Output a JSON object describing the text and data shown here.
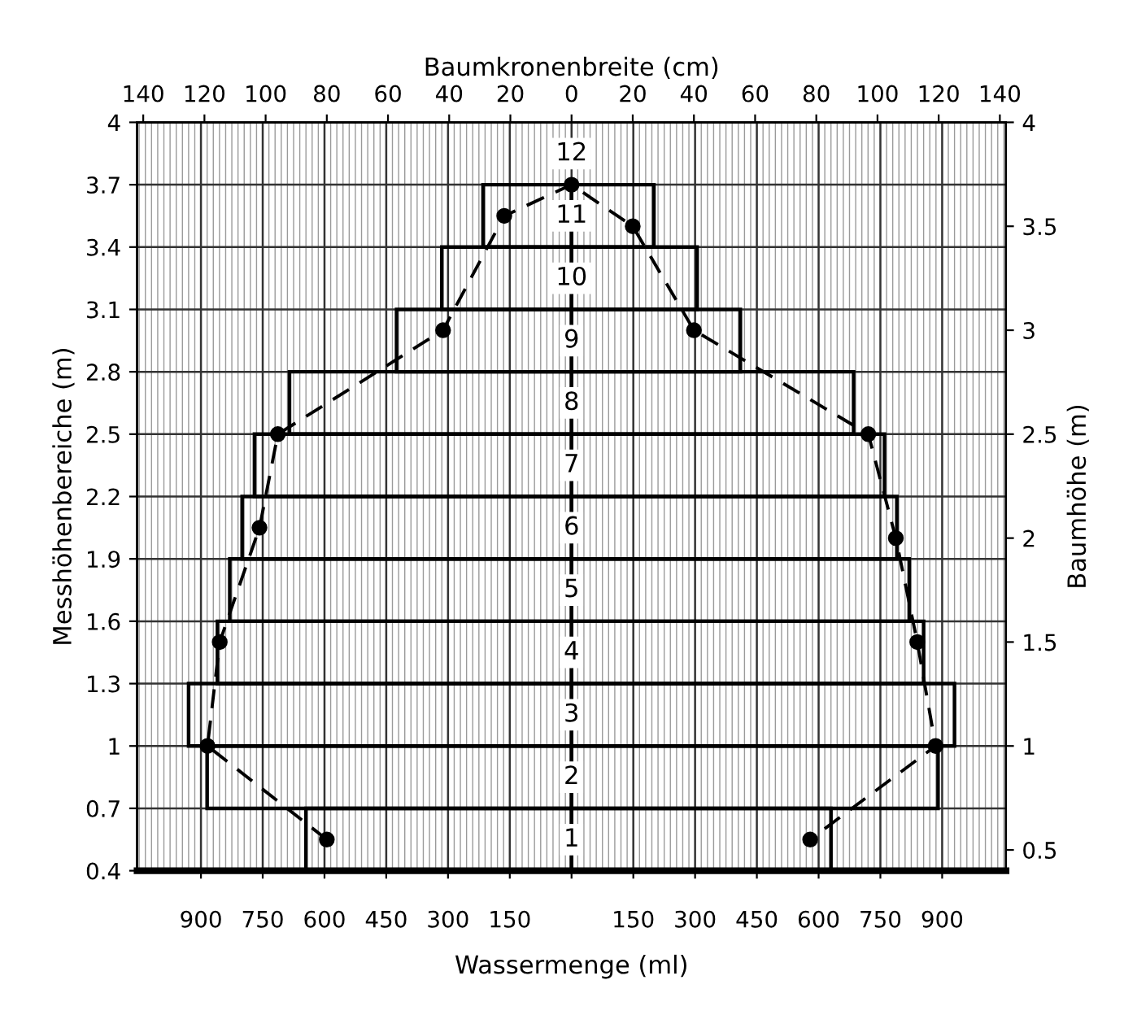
{
  "chart_data": {
    "type": "bar",
    "orientation": "horizontal",
    "xlabel": "Wassermenge (ml)",
    "x2label": "Baumkronenbreite (cm)",
    "ylabel": "Messhöhenbereiche (m)",
    "y2label": "Baumhöhe (m)",
    "xlim": [
      -1055,
      1055
    ],
    "xticks": [
      {
        "value": -900,
        "label": "900"
      },
      {
        "value": -750,
        "label": "750"
      },
      {
        "value": -600,
        "label": "600"
      },
      {
        "value": -450,
        "label": "450"
      },
      {
        "value": -300,
        "label": "300"
      },
      {
        "value": -150,
        "label": "150"
      },
      {
        "value": 0,
        "label": null
      },
      150,
      300,
      450,
      600,
      750,
      900
    ],
    "x2lim": [
      -142,
      142
    ],
    "x2ticks": [
      {
        "value": -140,
        "label": "140"
      },
      {
        "value": -120,
        "label": "120"
      },
      {
        "value": -100,
        "label": "100"
      },
      {
        "value": -80,
        "label": "80"
      },
      {
        "value": -60,
        "label": "60"
      },
      {
        "value": -40,
        "label": "40"
      },
      {
        "value": -20,
        "label": "20"
      },
      0,
      20,
      40,
      60,
      80,
      100,
      120,
      140
    ],
    "ylim": [
      0.4,
      4
    ],
    "yticks": [
      0.4,
      0.7,
      1,
      1.3,
      1.6,
      1.9,
      2.2,
      2.5,
      2.8,
      3.1,
      3.4,
      3.7,
      4
    ],
    "y2lim": [
      0.4,
      4
    ],
    "y2ticks": [
      0.5,
      1,
      1.5,
      2,
      2.5,
      3,
      3.5,
      4
    ],
    "grid": true,
    "marker": "circle",
    "line_style": "dashed",
    "annotations": [
      {
        "text": "1",
        "y": 0.55
      },
      {
        "text": "2",
        "y": 0.85
      },
      {
        "text": "3",
        "y": 1.15
      },
      {
        "text": "4",
        "y": 1.45
      },
      {
        "text": "5",
        "y": 1.75
      },
      {
        "text": "6",
        "y": 2.05
      },
      {
        "text": "7",
        "y": 2.35
      },
      {
        "text": "8",
        "y": 2.65
      },
      {
        "text": "9",
        "y": 2.95
      },
      {
        "text": "10",
        "y": 3.25
      },
      {
        "text": "11",
        "y": 3.55
      },
      {
        "text": "12",
        "y": 3.85
      }
    ],
    "series": [
      {
        "color": "#000000",
        "x": [
          0.55,
          0.85,
          1.15,
          1.45,
          1.75,
          2.05,
          2.35,
          2.65,
          2.95,
          3.25,
          3.55
        ],
        "values": [
          -645,
          -885,
          -930,
          -860,
          -830,
          -800,
          -770,
          -685,
          -425,
          -315,
          -215
        ]
      },
      {
        "color": "#000000",
        "x": [
          0.55,
          0.85,
          1.15,
          1.45,
          1.75,
          2.05,
          2.35,
          2.65,
          2.95,
          3.25,
          3.55
        ],
        "values": [
          630,
          890,
          930,
          855,
          820,
          790,
          760,
          685,
          410,
          305,
          200
        ]
      },
      {
        "type": "line",
        "axis": "x2",
        "color": "#000000",
        "x": [
          0.55,
          1.0,
          1.5,
          2.05,
          2.5,
          3.0,
          3.55,
          3.7,
          3.5,
          3.0,
          2.5,
          2.0,
          1.5,
          1.0,
          0.55
        ],
        "values": [
          -80,
          -119,
          -115,
          -102,
          -96,
          -42,
          -22,
          0,
          20,
          40,
          97,
          106,
          113,
          119,
          78
        ]
      }
    ]
  }
}
